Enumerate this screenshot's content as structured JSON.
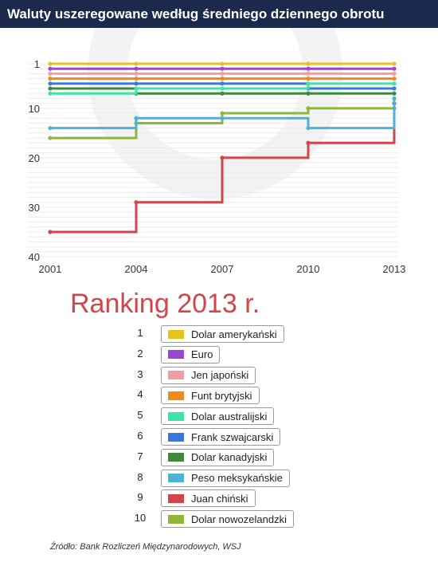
{
  "header": {
    "title": "Waluty uszeregowane według średniego dziennego obrotu"
  },
  "ranking": {
    "title": "Ranking 2013 r."
  },
  "source": "Źródło: Bank Rozliczeń Międzynarodowych, WSJ",
  "chart_data": {
    "type": "line",
    "step": true,
    "x": [
      2001,
      2004,
      2007,
      2010,
      2013
    ],
    "x_ticks": [
      "2001",
      "2004",
      "2007",
      "2010",
      "2013"
    ],
    "y_ticks": [
      "1",
      "10",
      "20",
      "30",
      "40"
    ],
    "y_tick_values": [
      1,
      10,
      20,
      30,
      40
    ],
    "ylim": [
      40,
      1
    ],
    "y_inverted": true,
    "grid": "horizontal",
    "series": [
      {
        "rank": "1",
        "name": "Dolar amerykański",
        "color": "#e8c21d",
        "values": [
          1,
          1,
          1,
          1,
          1
        ]
      },
      {
        "rank": "2",
        "name": "Euro",
        "color": "#9b45d6",
        "values": [
          2,
          2,
          2,
          2,
          2
        ]
      },
      {
        "rank": "3",
        "name": "Jen japoński",
        "color": "#eca0a4",
        "values": [
          3,
          3,
          3,
          3,
          3
        ]
      },
      {
        "rank": "4",
        "name": "Funt brytyjski",
        "color": "#f08a1f",
        "values": [
          4,
          4,
          4,
          4,
          4
        ]
      },
      {
        "rank": "5",
        "name": "Dolar australijski",
        "color": "#3de4a6",
        "values": [
          7,
          6,
          6,
          5,
          5
        ]
      },
      {
        "rank": "6",
        "name": "Frank szwajcarski",
        "color": "#3a78e0",
        "values": [
          5,
          5,
          5,
          6,
          6
        ]
      },
      {
        "rank": "7",
        "name": "Dolar kanadyjski",
        "color": "#3f8a3a",
        "values": [
          6,
          7,
          7,
          7,
          7
        ]
      },
      {
        "rank": "8",
        "name": "Peso meksykańskie",
        "color": "#4bb3d9",
        "values": [
          14,
          12,
          12,
          14,
          8
        ]
      },
      {
        "rank": "9",
        "name": "Juan chiński",
        "color": "#d2454b",
        "values": [
          35,
          29,
          20,
          17,
          9
        ]
      },
      {
        "rank": "10",
        "name": "Dolar nowozelandzki",
        "color": "#8fb53a",
        "values": [
          16,
          13,
          11,
          10,
          10
        ]
      }
    ]
  }
}
